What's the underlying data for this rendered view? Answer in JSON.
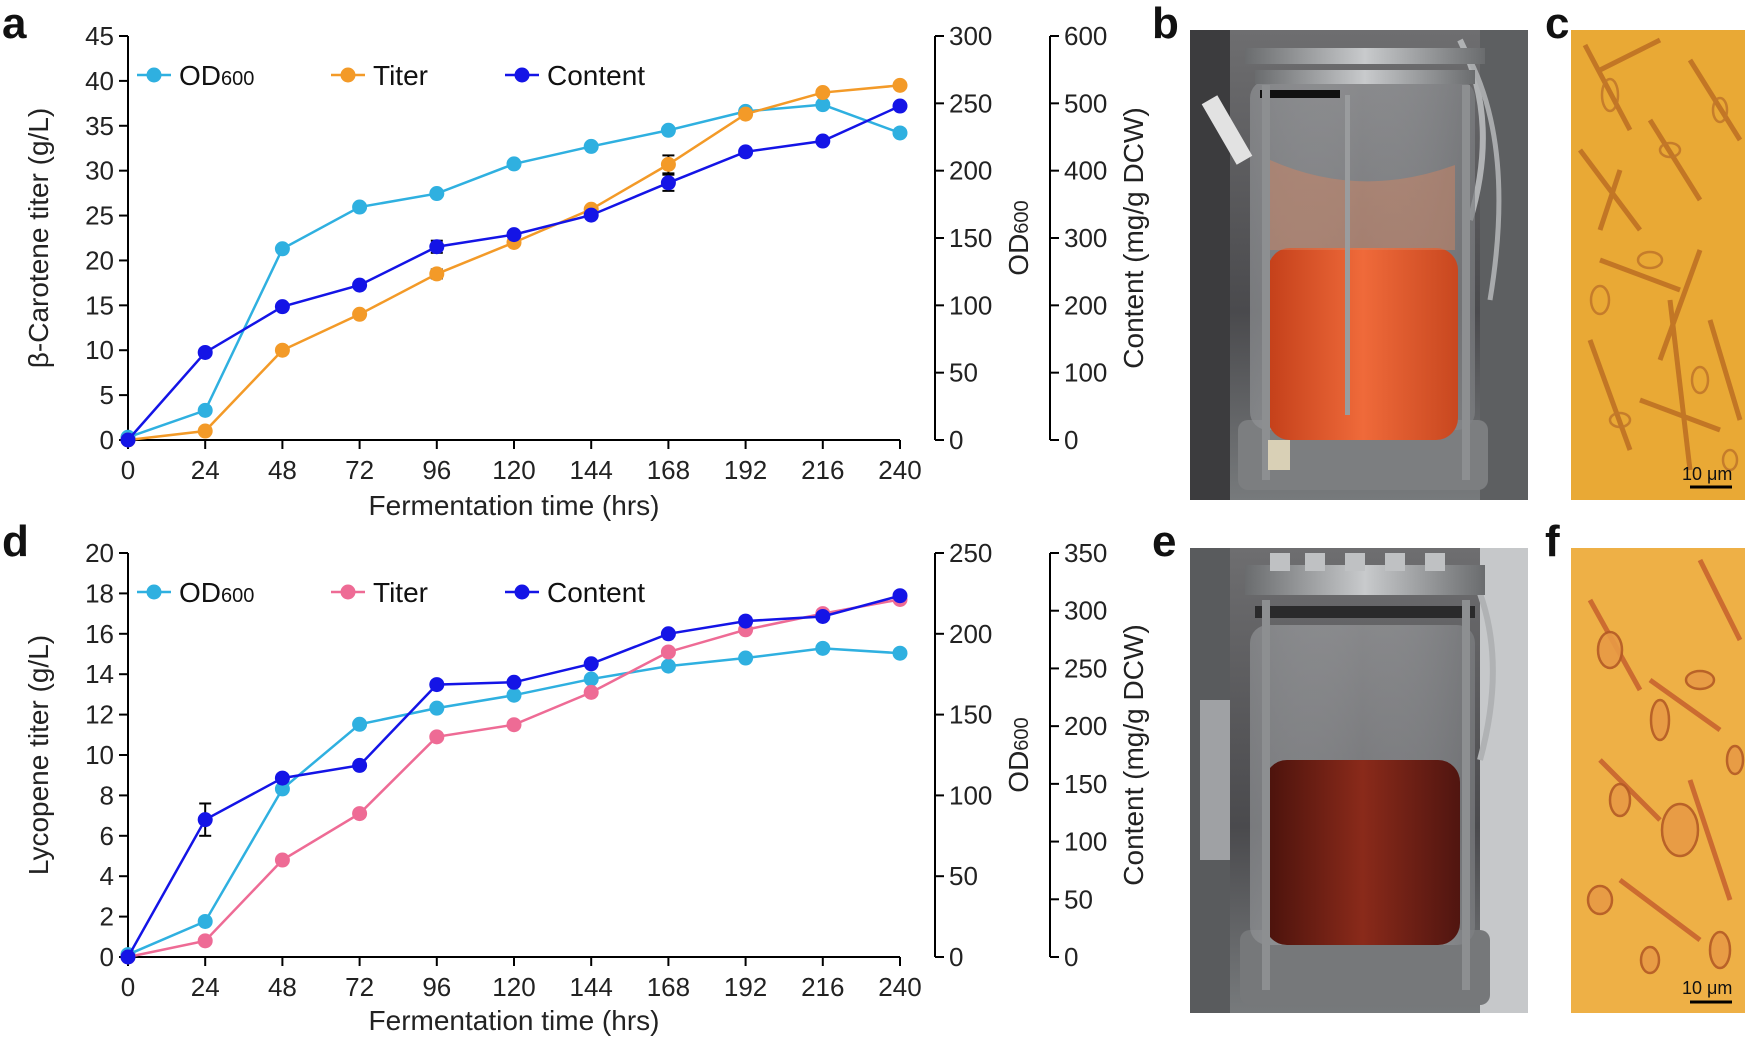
{
  "colors": {
    "od600": "#2fb0e0",
    "beta_titer": "#f39a28",
    "lyc_titer": "#ee6b95",
    "content": "#1414e6"
  },
  "chart_data": [
    {
      "panel": "a",
      "type": "line",
      "xlabel": "Fermentation time (hrs)",
      "x": [
        0,
        24,
        48,
        72,
        96,
        120,
        144,
        168,
        192,
        216,
        240
      ],
      "xticks": [
        "0",
        "24",
        "48",
        "72",
        "96",
        "120",
        "144",
        "168",
        "192",
        "216",
        "240"
      ],
      "xlim": [
        0,
        240
      ],
      "axes": [
        {
          "id": "left",
          "label": "β-Carotene titer (g/L)",
          "ylim": [
            0,
            45
          ],
          "ticks": [
            "0",
            "5",
            "10",
            "15",
            "20",
            "25",
            "30",
            "35",
            "40",
            "45"
          ]
        },
        {
          "id": "right1",
          "label": "OD600",
          "label_main": "OD",
          "label_sub": "600",
          "ylim": [
            0,
            300
          ],
          "ticks": [
            "0",
            "50",
            "100",
            "150",
            "200",
            "250",
            "300"
          ]
        },
        {
          "id": "right2",
          "label": "Content (mg/g DCW)",
          "ylim": [
            0,
            600
          ],
          "ticks": [
            "0",
            "100",
            "200",
            "300",
            "400",
            "500",
            "600"
          ]
        }
      ],
      "series": [
        {
          "name": "OD600",
          "legend_main": "OD",
          "legend_sub": "600",
          "axis": "right1",
          "color_key": "od600",
          "values": [
            2,
            22,
            142,
            173,
            183,
            205,
            218,
            230,
            244,
            249,
            228
          ]
        },
        {
          "name": "Titer",
          "legend_main": "Titer",
          "legend_sub": "",
          "axis": "left",
          "color_key": "beta_titer",
          "values": [
            0,
            1.0,
            10.0,
            14.0,
            18.5,
            22.0,
            25.7,
            30.7,
            36.3,
            38.7,
            39.5
          ],
          "errors": [
            0,
            0,
            0,
            0,
            0.5,
            0,
            0,
            1.0,
            0,
            0,
            0
          ]
        },
        {
          "name": "Content",
          "legend_main": "Content",
          "legend_sub": "",
          "axis": "right2",
          "color_key": "content",
          "values": [
            0,
            130,
            198,
            230,
            287,
            305,
            334,
            382,
            428,
            444,
            496
          ],
          "errors": [
            0,
            0,
            0,
            0,
            9,
            0,
            0,
            12,
            0,
            0,
            0
          ]
        }
      ]
    },
    {
      "panel": "d",
      "type": "line",
      "xlabel": "Fermentation time (hrs)",
      "x": [
        0,
        24,
        48,
        72,
        96,
        120,
        144,
        168,
        192,
        216,
        240
      ],
      "xticks": [
        "0",
        "24",
        "48",
        "72",
        "96",
        "120",
        "144",
        "168",
        "192",
        "216",
        "240"
      ],
      "xlim": [
        0,
        240
      ],
      "axes": [
        {
          "id": "left",
          "label": "Lycopene titer (g/L)",
          "ylim": [
            0,
            20
          ],
          "ticks": [
            "0",
            "2",
            "4",
            "6",
            "8",
            "10",
            "12",
            "14",
            "16",
            "18",
            "20"
          ]
        },
        {
          "id": "right1",
          "label": "OD600",
          "label_main": "OD",
          "label_sub": "600",
          "ylim": [
            0,
            250
          ],
          "ticks": [
            "0",
            "50",
            "100",
            "150",
            "200",
            "250"
          ]
        },
        {
          "id": "right2",
          "label": "Content (mg/g DCW)",
          "ylim": [
            0,
            350
          ],
          "ticks": [
            "0",
            "50",
            "100",
            "150",
            "200",
            "250",
            "300",
            "350"
          ]
        }
      ],
      "series": [
        {
          "name": "OD600",
          "legend_main": "OD",
          "legend_sub": "600",
          "axis": "right1",
          "color_key": "od600",
          "values": [
            1.5,
            22,
            104,
            144,
            154,
            162,
            172,
            180,
            185,
            191,
            188
          ]
        },
        {
          "name": "Titer",
          "legend_main": "Titer",
          "legend_sub": "",
          "axis": "left",
          "color_key": "lyc_titer",
          "values": [
            0,
            0.8,
            4.8,
            7.1,
            10.9,
            11.5,
            13.1,
            15.1,
            16.2,
            17.0,
            17.7
          ]
        },
        {
          "name": "Content",
          "legend_main": "Content",
          "legend_sub": "",
          "axis": "right2",
          "color_key": "content",
          "values": [
            0,
            119,
            155,
            166,
            236,
            238,
            254,
            280,
            291,
            295,
            313
          ],
          "errors": [
            0,
            14,
            0,
            0,
            0,
            0,
            0,
            0,
            0,
            0,
            0
          ]
        }
      ]
    }
  ],
  "photos": [
    {
      "panel": "b",
      "kind": "bioreactor",
      "broth": "orange"
    },
    {
      "panel": "c",
      "kind": "micrograph",
      "scale_label": "10 μm"
    },
    {
      "panel": "e",
      "kind": "bioreactor",
      "broth": "red"
    },
    {
      "panel": "f",
      "kind": "micrograph",
      "scale_label": "10 μm"
    }
  ]
}
